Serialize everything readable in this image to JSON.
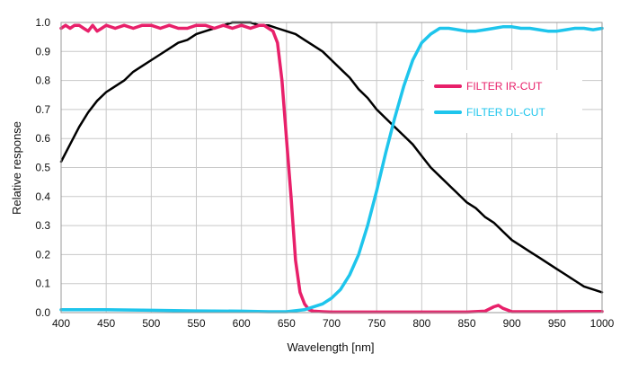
{
  "chart_data": {
    "type": "line",
    "title": "",
    "xlabel": "Wavelength [nm]",
    "ylabel": "Relative response",
    "xlim": [
      400,
      1000
    ],
    "ylim": [
      0,
      1.0
    ],
    "grid": true,
    "legend_position": "right",
    "x_ticks": [
      "400",
      "450",
      "500",
      "550",
      "600",
      "650",
      "700",
      "750",
      "800",
      "850",
      "900",
      "950",
      "1000"
    ],
    "y_ticks": [
      "0.0",
      "0.1",
      "0.2",
      "0.3",
      "0.4",
      "0.5",
      "0.6",
      "0.7",
      "0.8",
      "0.9",
      "1.0"
    ],
    "series": [
      {
        "name": "",
        "color": "#000000",
        "x": [
          400,
          410,
          420,
          430,
          440,
          450,
          460,
          470,
          480,
          490,
          500,
          510,
          520,
          530,
          540,
          550,
          560,
          570,
          580,
          590,
          600,
          610,
          620,
          630,
          640,
          650,
          660,
          670,
          680,
          690,
          700,
          710,
          720,
          730,
          740,
          750,
          760,
          770,
          780,
          790,
          800,
          810,
          820,
          830,
          840,
          850,
          860,
          870,
          880,
          890,
          900,
          910,
          920,
          930,
          940,
          950,
          960,
          970,
          980,
          990,
          1000
        ],
        "y": [
          0.52,
          0.58,
          0.64,
          0.69,
          0.73,
          0.76,
          0.78,
          0.8,
          0.83,
          0.85,
          0.87,
          0.89,
          0.91,
          0.93,
          0.94,
          0.96,
          0.97,
          0.98,
          0.99,
          1.0,
          1.0,
          1.0,
          0.99,
          0.99,
          0.98,
          0.97,
          0.96,
          0.94,
          0.92,
          0.9,
          0.87,
          0.84,
          0.81,
          0.77,
          0.74,
          0.7,
          0.67,
          0.64,
          0.61,
          0.58,
          0.54,
          0.5,
          0.47,
          0.44,
          0.41,
          0.38,
          0.36,
          0.33,
          0.31,
          0.28,
          0.25,
          0.23,
          0.21,
          0.19,
          0.17,
          0.15,
          0.13,
          0.11,
          0.09,
          0.08,
          0.07
        ]
      },
      {
        "name": "FILTER IR-CUT",
        "color": "#e8206a",
        "x": [
          400,
          405,
          410,
          415,
          420,
          425,
          430,
          435,
          440,
          445,
          450,
          460,
          470,
          480,
          490,
          500,
          510,
          520,
          530,
          540,
          550,
          560,
          570,
          580,
          590,
          600,
          610,
          620,
          625,
          630,
          635,
          640,
          645,
          650,
          655,
          660,
          665,
          670,
          675,
          680,
          690,
          700,
          750,
          800,
          850,
          870,
          880,
          885,
          890,
          900,
          950,
          1000
        ],
        "y": [
          0.98,
          0.99,
          0.98,
          0.99,
          0.99,
          0.98,
          0.97,
          0.99,
          0.97,
          0.98,
          0.99,
          0.98,
          0.99,
          0.98,
          0.99,
          0.99,
          0.98,
          0.99,
          0.98,
          0.98,
          0.99,
          0.99,
          0.98,
          0.99,
          0.98,
          0.99,
          0.98,
          0.99,
          0.99,
          0.98,
          0.97,
          0.93,
          0.8,
          0.6,
          0.4,
          0.18,
          0.07,
          0.03,
          0.01,
          0.005,
          0.003,
          0.002,
          0.002,
          0.002,
          0.002,
          0.005,
          0.02,
          0.025,
          0.015,
          0.003,
          0.003,
          0.004
        ]
      },
      {
        "name": "FILTER DL-CUT",
        "color": "#1ec5ec",
        "x": [
          400,
          450,
          500,
          550,
          600,
          630,
          650,
          670,
          690,
          700,
          710,
          720,
          730,
          740,
          750,
          760,
          770,
          780,
          790,
          800,
          810,
          820,
          830,
          840,
          850,
          860,
          870,
          880,
          890,
          900,
          910,
          920,
          930,
          940,
          950,
          960,
          970,
          980,
          990,
          1000
        ],
        "y": [
          0.01,
          0.01,
          0.008,
          0.006,
          0.005,
          0.003,
          0.003,
          0.01,
          0.03,
          0.05,
          0.08,
          0.13,
          0.2,
          0.3,
          0.42,
          0.55,
          0.67,
          0.78,
          0.87,
          0.93,
          0.96,
          0.98,
          0.98,
          0.975,
          0.97,
          0.97,
          0.975,
          0.98,
          0.985,
          0.985,
          0.98,
          0.98,
          0.975,
          0.97,
          0.97,
          0.975,
          0.98,
          0.98,
          0.975,
          0.98
        ]
      }
    ]
  }
}
